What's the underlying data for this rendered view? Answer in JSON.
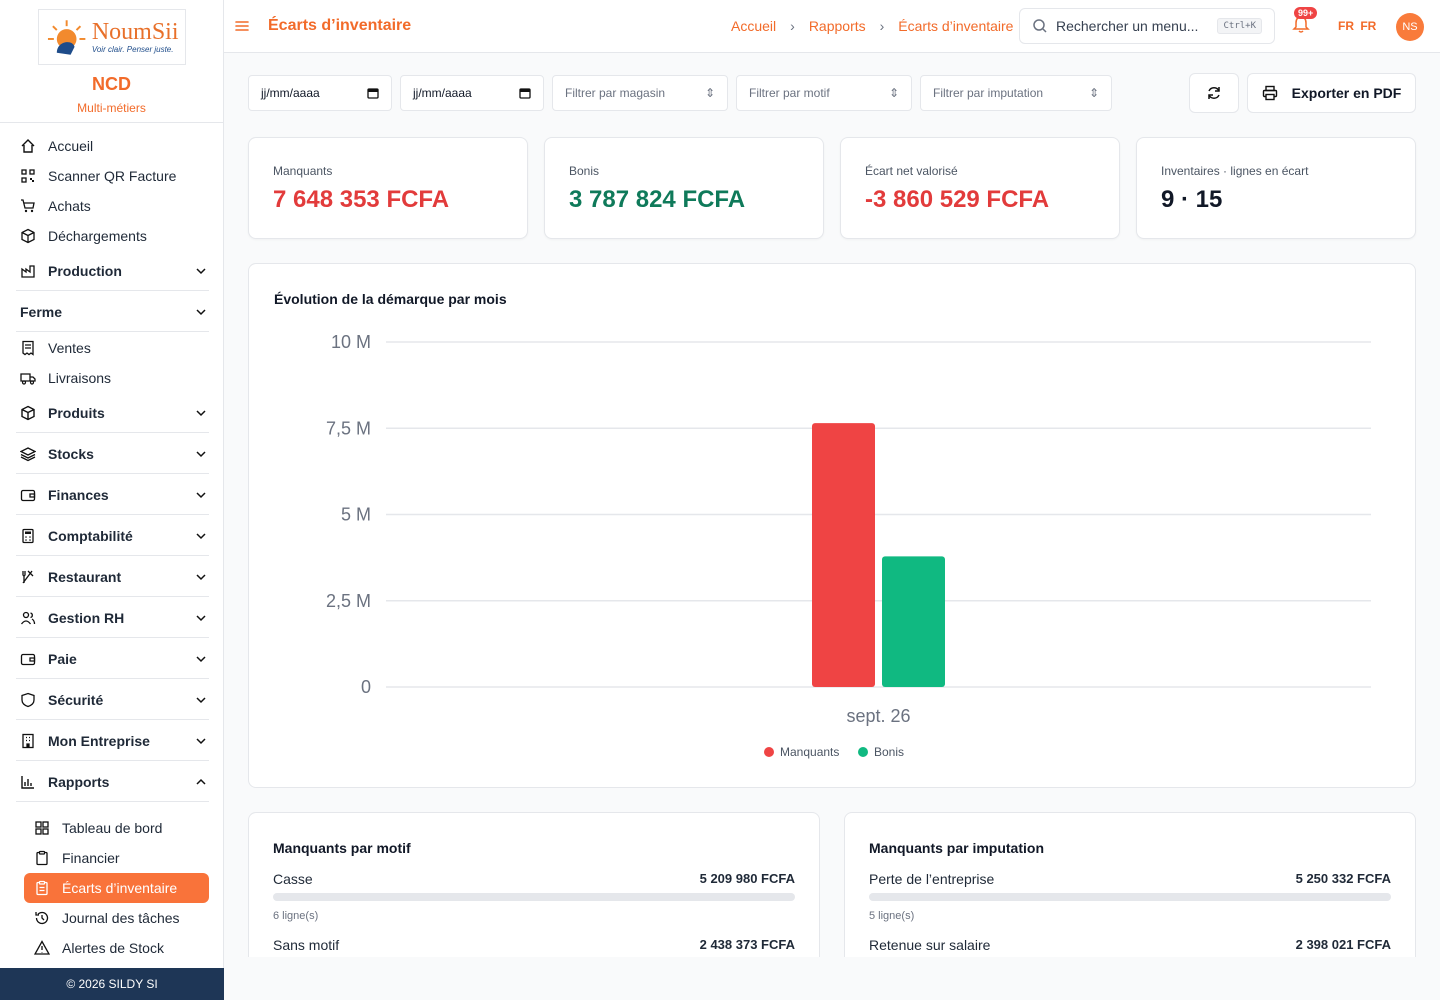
{
  "brand": {
    "logo_name": "NoumSii",
    "logo_tagline": "Voir clair. Penser juste.",
    "company": "NCD",
    "company_sub": "Multi-métiers"
  },
  "sidebar": {
    "items": [
      {
        "label": "Accueil",
        "icon": "home-icon",
        "kind": "item"
      },
      {
        "label": "Scanner QR Facture",
        "icon": "qr-icon",
        "kind": "item"
      },
      {
        "label": "Achats",
        "icon": "cart-icon",
        "kind": "item"
      },
      {
        "label": "Déchargements",
        "icon": "package-icon",
        "kind": "item"
      },
      {
        "label": "Production",
        "icon": "factory-icon",
        "kind": "group"
      },
      {
        "label": "Ferme",
        "icon": "",
        "kind": "group"
      },
      {
        "label": "Ventes",
        "icon": "receipt-icon",
        "kind": "item"
      },
      {
        "label": "Livraisons",
        "icon": "truck-icon",
        "kind": "item"
      },
      {
        "label": "Produits",
        "icon": "box-icon",
        "kind": "group"
      },
      {
        "label": "Stocks",
        "icon": "layers-icon",
        "kind": "group"
      },
      {
        "label": "Finances",
        "icon": "wallet-icon",
        "kind": "group"
      },
      {
        "label": "Comptabilité",
        "icon": "calculator-icon",
        "kind": "group"
      },
      {
        "label": "Restaurant",
        "icon": "utensils-icon",
        "kind": "group"
      },
      {
        "label": "Gestion RH",
        "icon": "users-icon",
        "kind": "group"
      },
      {
        "label": "Paie",
        "icon": "wallet-icon",
        "kind": "group"
      },
      {
        "label": "Sécurité",
        "icon": "shield-icon",
        "kind": "group"
      },
      {
        "label": "Mon Entreprise",
        "icon": "building-icon",
        "kind": "group"
      },
      {
        "label": "Rapports",
        "icon": "bar-chart-icon",
        "kind": "group-open"
      }
    ],
    "sub_items": [
      {
        "label": "Tableau de bord",
        "icon": "dashboard-icon"
      },
      {
        "label": "Financier",
        "icon": "clipboard-icon"
      },
      {
        "label": "Écarts d’inventaire",
        "icon": "clipboard-list-icon",
        "active": true
      },
      {
        "label": "Journal des tâches",
        "icon": "history-icon"
      },
      {
        "label": "Alertes de Stock",
        "icon": "alert-triangle-icon"
      }
    ],
    "footer": "© 2026 SILDY SI"
  },
  "header": {
    "title": "Écarts d’inventaire",
    "breadcrumbs": [
      "Accueil",
      "Rapports",
      "Écarts d’inventaire"
    ],
    "search_placeholder": "Rechercher un menu...",
    "search_shortcut": "Ctrl+K",
    "notifications": "99+",
    "lang_flag": "FR",
    "lang": "FR",
    "avatar": "NS"
  },
  "filters": {
    "date_from": "jj/mm/aaaa",
    "date_to": "jj/mm/aaaa",
    "store": "Filtrer par magasin",
    "reason": "Filtrer par motif",
    "imputation": "Filtrer par imputation",
    "export": "Exporter en PDF"
  },
  "kpis": [
    {
      "label": "Manquants",
      "value": "7 648 353 FCFA",
      "color": "#e23b3b"
    },
    {
      "label": "Bonis",
      "value": "3 787 824 FCFA",
      "color": "#0f7a5a"
    },
    {
      "label": "Écart net valorisé",
      "value": "-3 860 529 FCFA",
      "color": "#e23b3b"
    },
    {
      "label": "Inventaires · lignes en écart",
      "value": "9 · 15",
      "color": "#111827"
    }
  ],
  "chart_title": "Évolution de la démarque par mois",
  "chart_data": {
    "type": "bar",
    "categories": [
      "sept. 26"
    ],
    "series": [
      {
        "name": "Manquants",
        "values": [
          7648353
        ],
        "color": "#ef4444"
      },
      {
        "name": "Bonis",
        "values": [
          3787824
        ],
        "color": "#10b981"
      }
    ],
    "ylim": [
      0,
      10000000
    ],
    "y_ticks": [
      0,
      2500000,
      5000000,
      7500000,
      10000000
    ],
    "y_tick_labels": [
      "0",
      "2,5 M",
      "5 M",
      "7,5 M",
      "10 M"
    ],
    "legend": "bottom",
    "grid": true
  },
  "by_reason": {
    "title": "Manquants par motif",
    "rows": [
      {
        "label": "Casse",
        "amount": "5 209 980 FCFA",
        "lines": "6 ligne(s)"
      },
      {
        "label": "Sans motif",
        "amount": "2 438 373 FCFA",
        "lines": ""
      }
    ]
  },
  "by_imputation": {
    "title": "Manquants par imputation",
    "rows": [
      {
        "label": "Perte de l’entreprise",
        "amount": "5 250 332 FCFA",
        "lines": "5 ligne(s)"
      },
      {
        "label": "Retenue sur salaire",
        "amount": "2 398 021 FCFA",
        "lines": ""
      }
    ]
  }
}
